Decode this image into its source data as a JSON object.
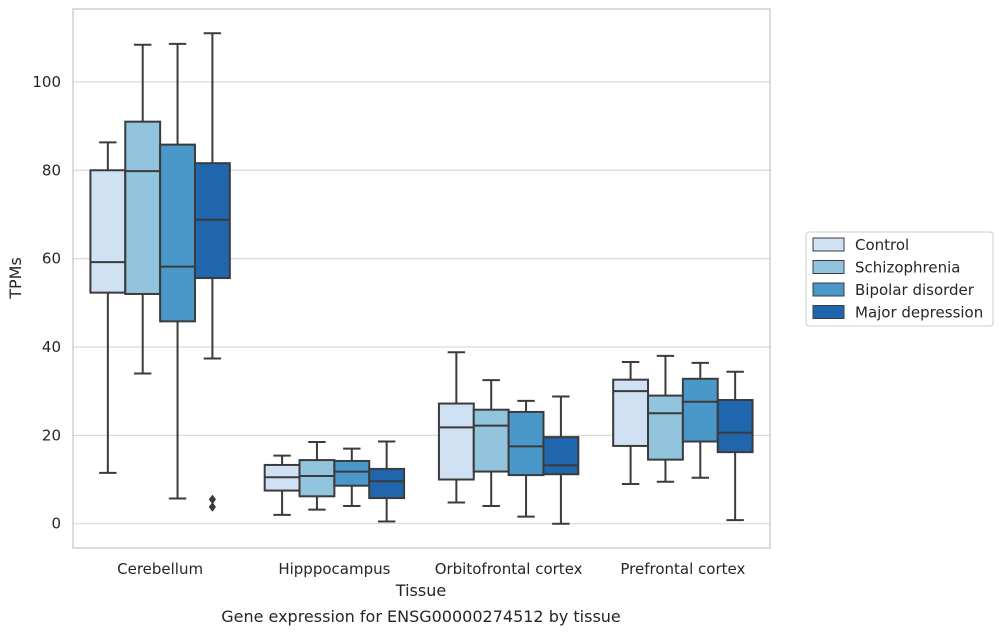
{
  "caption": "Gene expression for ENSG00000274512 by tissue",
  "chart_data": {
    "type": "boxplot",
    "xlabel": "Tissue",
    "ylabel": "TPMs",
    "ylim": [
      -5.5,
      116.5
    ],
    "yticks": [
      0,
      20,
      40,
      60,
      80,
      100
    ],
    "grid": "horizontal",
    "legend_position": "right",
    "categories": [
      "Cerebellum",
      "Hipppocampus",
      "Orbitofrontal cortex",
      "Prefrontal cortex"
    ],
    "series": [
      {
        "name": "Control",
        "color": "#cfe1f2",
        "boxes": [
          {
            "whisker_low": 11.5,
            "q1": 52.3,
            "median": 59.2,
            "q3": 80.0,
            "whisker_high": 86.3,
            "outliers": []
          },
          {
            "whisker_low": 2.0,
            "q1": 7.5,
            "median": 10.5,
            "q3": 13.3,
            "whisker_high": 15.4,
            "outliers": []
          },
          {
            "whisker_low": 4.8,
            "q1": 10.0,
            "median": 21.8,
            "q3": 27.2,
            "whisker_high": 38.8,
            "outliers": []
          },
          {
            "whisker_low": 9.0,
            "q1": 17.6,
            "median": 30.0,
            "q3": 32.6,
            "whisker_high": 36.6,
            "outliers": []
          }
        ]
      },
      {
        "name": "Schizophrenia",
        "color": "#93c4de",
        "boxes": [
          {
            "whisker_low": 34.0,
            "q1": 52.0,
            "median": 79.8,
            "q3": 91.0,
            "whisker_high": 108.4,
            "outliers": []
          },
          {
            "whisker_low": 3.2,
            "q1": 6.2,
            "median": 10.8,
            "q3": 14.4,
            "whisker_high": 18.5,
            "outliers": []
          },
          {
            "whisker_low": 4.0,
            "q1": 11.8,
            "median": 22.2,
            "q3": 25.8,
            "whisker_high": 32.5,
            "outliers": []
          },
          {
            "whisker_low": 9.5,
            "q1": 14.5,
            "median": 25.0,
            "q3": 29.0,
            "whisker_high": 38.0,
            "outliers": []
          }
        ]
      },
      {
        "name": "Bipolar disorder",
        "color": "#4a98c9",
        "boxes": [
          {
            "whisker_low": 5.7,
            "q1": 45.8,
            "median": 58.2,
            "q3": 85.8,
            "whisker_high": 108.6,
            "outliers": []
          },
          {
            "whisker_low": 4.0,
            "q1": 8.6,
            "median": 11.8,
            "q3": 14.2,
            "whisker_high": 17.0,
            "outliers": []
          },
          {
            "whisker_low": 1.6,
            "q1": 11.0,
            "median": 17.5,
            "q3": 25.3,
            "whisker_high": 27.8,
            "outliers": []
          },
          {
            "whisker_low": 10.4,
            "q1": 18.6,
            "median": 27.6,
            "q3": 32.8,
            "whisker_high": 36.4,
            "outliers": []
          }
        ]
      },
      {
        "name": "Major depression",
        "color": "#2066ac",
        "boxes": [
          {
            "whisker_low": 37.4,
            "q1": 55.6,
            "median": 68.8,
            "q3": 81.6,
            "whisker_high": 111.0,
            "outliers": [
              3.8,
              5.5
            ]
          },
          {
            "whisker_low": 0.5,
            "q1": 5.8,
            "median": 9.6,
            "q3": 12.4,
            "whisker_high": 18.6,
            "outliers": []
          },
          {
            "whisker_low": 0.0,
            "q1": 11.2,
            "median": 13.2,
            "q3": 19.6,
            "whisker_high": 28.8,
            "outliers": []
          },
          {
            "whisker_low": 0.8,
            "q1": 16.2,
            "median": 20.6,
            "q3": 28.0,
            "whisker_high": 34.4,
            "outliers": []
          }
        ]
      }
    ]
  }
}
